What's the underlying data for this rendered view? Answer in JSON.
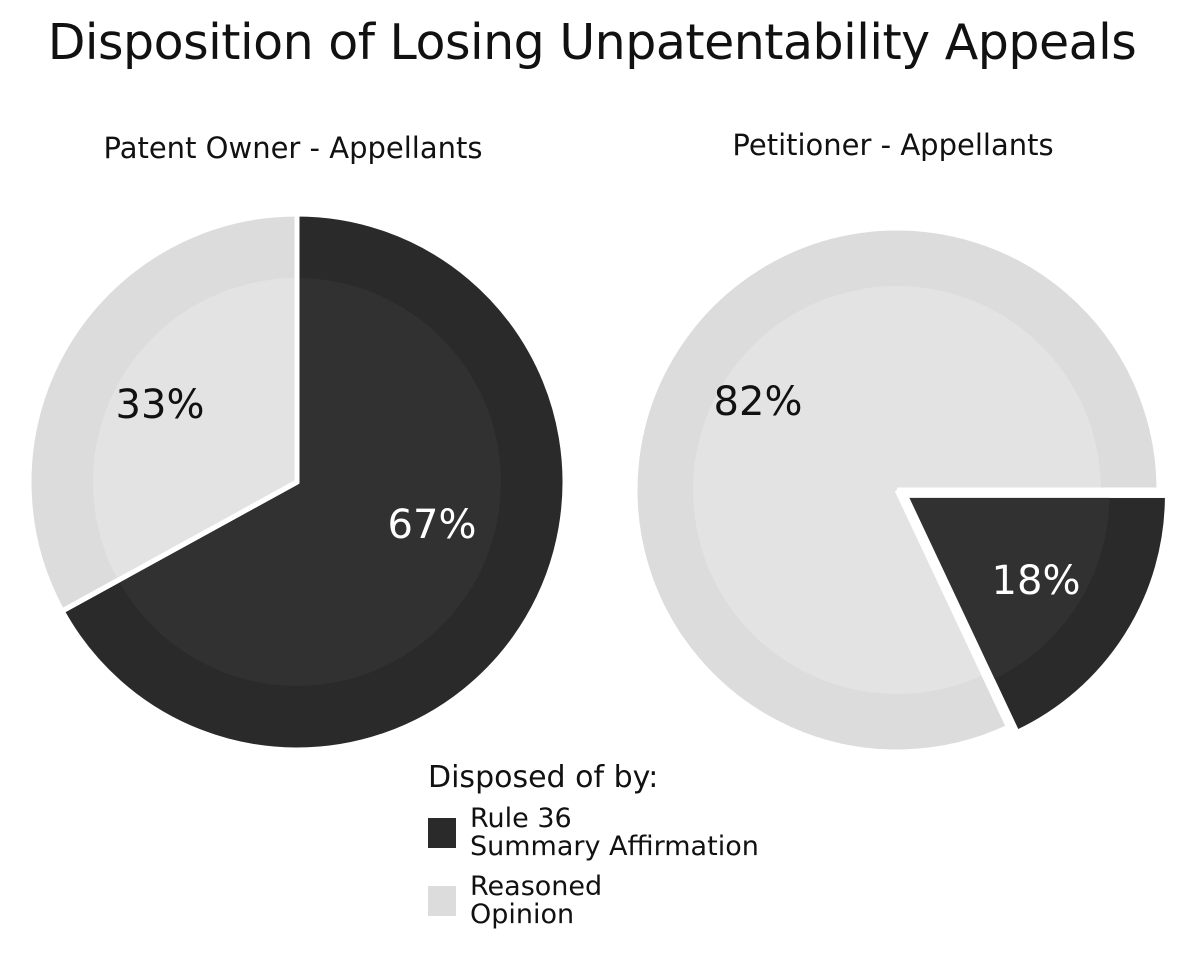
{
  "title": "Disposition of Losing Unpatentability Appeals",
  "legend": {
    "title": "Disposed of by:",
    "items": [
      {
        "lines": [
          "Rule 36",
          "Summary Affirmation"
        ],
        "color": "#2a2a2a"
      },
      {
        "lines": [
          "Reasoned",
          "Opinion"
        ],
        "color": "#dcdcdc"
      }
    ]
  },
  "chart_data": [
    {
      "type": "pie",
      "title": "Patent Owner - Appellants",
      "categories": [
        "Rule 36 Summary Affirmation",
        "Reasoned Opinion"
      ],
      "values": [
        67,
        33
      ],
      "labels": [
        "67%",
        "33%"
      ],
      "colors": [
        "#2a2a2a",
        "#dcdcdc"
      ],
      "label_colors": [
        "#ffffff",
        "#111111"
      ],
      "start": "12 o'clock, clockwise"
    },
    {
      "type": "pie",
      "title": "Petitioner - Appellants",
      "categories": [
        "Rule 36 Summary Affirmation",
        "Reasoned Opinion"
      ],
      "values": [
        18,
        82
      ],
      "labels": [
        "18%",
        "82%"
      ],
      "colors": [
        "#2a2a2a",
        "#dcdcdc"
      ],
      "label_colors": [
        "#ffffff",
        "#111111"
      ],
      "start": "3 o'clock, clockwise",
      "exploded": "Rule 36 Summary Affirmation"
    }
  ]
}
